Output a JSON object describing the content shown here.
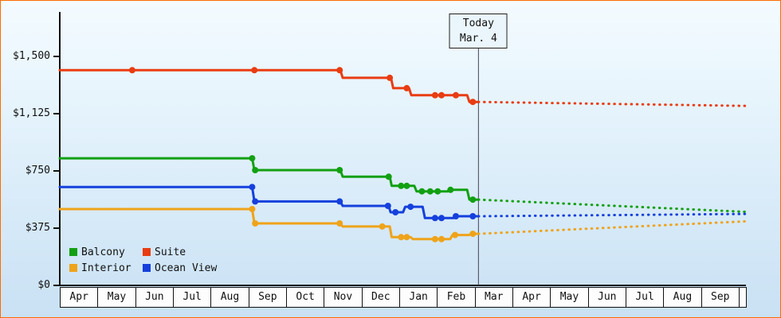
{
  "chart_data": {
    "type": "line",
    "x_unit": "month_index_from_Apr",
    "y_unit": "USD",
    "y_axis": {
      "max": 1500,
      "ticks": [
        {
          "value": 0,
          "label": "$0"
        },
        {
          "value": 375,
          "label": "$375"
        },
        {
          "value": 750,
          "label": "$750"
        },
        {
          "value": 1125,
          "label": "$1,125"
        },
        {
          "value": 1500,
          "label": "$1,500"
        }
      ]
    },
    "x_axis": {
      "months": [
        "Apr",
        "May",
        "Jun",
        "Jul",
        "Aug",
        "Sep",
        "Oct",
        "Nov",
        "Dec",
        "Jan",
        "Feb",
        "Mar",
        "Apr",
        "May",
        "Jun",
        "Jul",
        "Aug",
        "Sep"
      ]
    },
    "today": {
      "title": "Today",
      "date": "Mar. 4",
      "month_x": 11.1
    },
    "series": [
      {
        "name": "Suite",
        "color": "#e93c12",
        "solid": [
          [
            0,
            1410
          ],
          [
            7.44,
            1410
          ],
          [
            7.5,
            1360
          ],
          [
            8.78,
            1360
          ],
          [
            8.84,
            1292
          ],
          [
            9.26,
            1292
          ],
          [
            9.32,
            1246
          ],
          [
            10.8,
            1246
          ],
          [
            10.86,
            1202
          ],
          [
            11.1,
            1202
          ]
        ],
        "dashed": [
          [
            11.1,
            1202
          ],
          [
            18.2,
            1176
          ]
        ],
        "dots": [
          [
            1.92,
            1410
          ],
          [
            5.16,
            1410
          ],
          [
            7.42,
            1410
          ],
          [
            8.75,
            1360
          ],
          [
            9.2,
            1292
          ],
          [
            9.95,
            1246
          ],
          [
            10.12,
            1246
          ],
          [
            10.5,
            1246
          ],
          [
            10.95,
            1202
          ]
        ]
      },
      {
        "name": "Balcony",
        "color": "#12a012",
        "solid": [
          [
            0,
            833
          ],
          [
            5.1,
            833
          ],
          [
            5.16,
            755
          ],
          [
            7.44,
            755
          ],
          [
            7.5,
            712
          ],
          [
            8.75,
            712
          ],
          [
            8.8,
            652
          ],
          [
            9.4,
            652
          ],
          [
            9.46,
            616
          ],
          [
            10.28,
            616
          ],
          [
            10.34,
            626
          ],
          [
            10.8,
            626
          ],
          [
            10.86,
            562
          ],
          [
            11.1,
            562
          ]
        ],
        "dashed": [
          [
            11.1,
            562
          ],
          [
            18.2,
            482
          ]
        ],
        "dots": [
          [
            5.1,
            833
          ],
          [
            5.18,
            755
          ],
          [
            7.42,
            755
          ],
          [
            8.72,
            712
          ],
          [
            9.05,
            652
          ],
          [
            9.2,
            652
          ],
          [
            9.6,
            616
          ],
          [
            9.82,
            616
          ],
          [
            10.02,
            616
          ],
          [
            10.36,
            626
          ],
          [
            10.95,
            562
          ]
        ]
      },
      {
        "name": "Ocean View",
        "color": "#1540dd",
        "solid": [
          [
            0,
            645
          ],
          [
            5.1,
            645
          ],
          [
            5.16,
            550
          ],
          [
            7.44,
            550
          ],
          [
            7.5,
            521
          ],
          [
            8.72,
            521
          ],
          [
            8.77,
            479
          ],
          [
            9.1,
            479
          ],
          [
            9.16,
            515
          ],
          [
            9.62,
            515
          ],
          [
            9.68,
            441
          ],
          [
            10.44,
            441
          ],
          [
            10.5,
            453
          ],
          [
            11.1,
            453
          ]
        ],
        "dashed": [
          [
            11.1,
            453
          ],
          [
            18.2,
            468
          ]
        ],
        "dots": [
          [
            5.1,
            645
          ],
          [
            5.18,
            550
          ],
          [
            7.42,
            550
          ],
          [
            8.7,
            521
          ],
          [
            8.9,
            479
          ],
          [
            9.3,
            515
          ],
          [
            9.95,
            441
          ],
          [
            10.12,
            441
          ],
          [
            10.5,
            453
          ],
          [
            10.95,
            453
          ]
        ]
      },
      {
        "name": "Interior",
        "color": "#efa31a",
        "solid": [
          [
            0,
            500
          ],
          [
            5.1,
            500
          ],
          [
            5.16,
            406
          ],
          [
            7.44,
            406
          ],
          [
            7.5,
            386
          ],
          [
            8.75,
            386
          ],
          [
            8.8,
            316
          ],
          [
            9.3,
            316
          ],
          [
            9.36,
            303
          ],
          [
            10.35,
            303
          ],
          [
            10.41,
            330
          ],
          [
            10.85,
            330
          ],
          [
            10.9,
            338
          ],
          [
            11.1,
            338
          ]
        ],
        "dashed": [
          [
            11.1,
            338
          ],
          [
            18.2,
            420
          ]
        ],
        "dots": [
          [
            5.1,
            500
          ],
          [
            5.18,
            406
          ],
          [
            7.42,
            406
          ],
          [
            8.55,
            386
          ],
          [
            9.05,
            316
          ],
          [
            9.2,
            316
          ],
          [
            9.95,
            303
          ],
          [
            10.12,
            303
          ],
          [
            10.48,
            330
          ],
          [
            10.95,
            338
          ]
        ]
      }
    ],
    "legend": {
      "rows": [
        [
          {
            "label": "Balcony",
            "color": "#12a012"
          },
          {
            "label": "Suite",
            "color": "#e93c12"
          }
        ],
        [
          {
            "label": "Interior",
            "color": "#efa31a"
          },
          {
            "label": "Ocean View",
            "color": "#1540dd"
          }
        ]
      ]
    }
  }
}
